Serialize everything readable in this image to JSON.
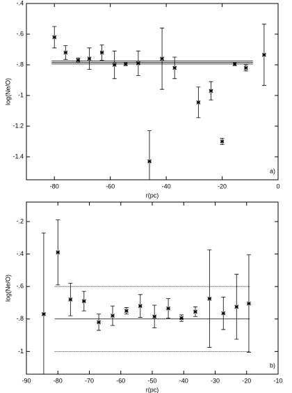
{
  "chart_data": [
    {
      "type": "scatter",
      "xlabel": "r(pc)",
      "ylabel": "log(Ne/O)",
      "panel_label": "a)",
      "xlim": [
        -90,
        0
      ],
      "xticks": [
        -80,
        -60,
        -40,
        -20,
        0
      ],
      "ylim": [
        -1.55,
        -0.4
      ],
      "yticks": [
        {
          "value": -0.4,
          "label": "-.4"
        },
        {
          "value": -0.6,
          "label": "-.6"
        },
        {
          "value": -0.8,
          "label": "-.8"
        },
        -1,
        -1.2,
        -1.4
      ],
      "series": [
        {
          "color": "#000000",
          "x": [
            -80,
            -76,
            -71.5,
            -67.5,
            -63,
            -58.5,
            -54.5,
            -50,
            -46,
            -41.5,
            -37,
            -28.5,
            -24,
            -20,
            -15.5,
            -11.5,
            -5
          ],
          "values": [
            -0.62,
            -0.72,
            -0.77,
            -0.76,
            -0.72,
            -0.8,
            -0.795,
            -0.79,
            -1.43,
            -0.76,
            -0.82,
            -1.045,
            -0.97,
            -1.3,
            -0.795,
            -0.82,
            -0.735
          ],
          "errors": [
            0.07,
            0.045,
            0.015,
            0.07,
            0.05,
            0.09,
            0.01,
            0.08,
            0.2,
            0.2,
            0.07,
            0.1,
            0.06,
            0.02,
            0.01,
            0.02,
            0.2
          ]
        }
      ],
      "hlines": [
        {
          "y": -0.775,
          "x": [
            -81,
            -9
          ],
          "style": "solid"
        },
        {
          "y": -0.785,
          "x": [
            -81,
            -9
          ],
          "style": "solid"
        },
        {
          "y": -0.795,
          "x": [
            -81,
            -9
          ],
          "style": "solid"
        }
      ]
    },
    {
      "type": "scatter",
      "xlabel": "r(pc)",
      "ylabel": "log(Ne/O)",
      "panel_label": "b)",
      "xlim": [
        -90,
        -10
      ],
      "xticks": [
        -90,
        -80,
        -70,
        -60,
        -50,
        -40,
        -30,
        -20,
        -10
      ],
      "ylim": [
        -1.14,
        -0.08
      ],
      "yticks": [
        {
          "value": -0.2,
          "label": "-.2"
        },
        {
          "value": -0.4,
          "label": "-.4"
        },
        {
          "value": -0.6,
          "label": "-.6"
        },
        {
          "value": -0.8,
          "label": "-.8"
        },
        -1
      ],
      "series": [
        {
          "color": "#000000",
          "x": [
            -84.5,
            -80,
            -76,
            -71.7,
            -67,
            -62.6,
            -58.2,
            -53.8,
            -49.3,
            -44.9,
            -40.7,
            -36.3,
            -31.8,
            -27.4,
            -23.2,
            -19.3
          ],
          "values": [
            -0.77,
            -0.39,
            -0.68,
            -0.69,
            -0.82,
            -0.78,
            -0.75,
            -0.72,
            -0.785,
            -0.735,
            -0.795,
            -0.755,
            -0.675,
            -0.765,
            -0.725,
            -0.705
          ],
          "errors": [
            0.5,
            0.2,
            0.1,
            0.06,
            0.05,
            0.06,
            0.02,
            0.07,
            0.07,
            0.06,
            0.02,
            0.03,
            0.3,
            0.1,
            0.2,
            0.3
          ]
        }
      ],
      "hlines": [
        {
          "y": -0.6,
          "x": [
            -81,
            -19
          ],
          "style": "dotted"
        },
        {
          "y": -0.8,
          "x": [
            -81,
            -19
          ],
          "style": "solid"
        },
        {
          "y": -1,
          "x": [
            -81,
            -19
          ],
          "style": "dotted"
        }
      ]
    }
  ]
}
